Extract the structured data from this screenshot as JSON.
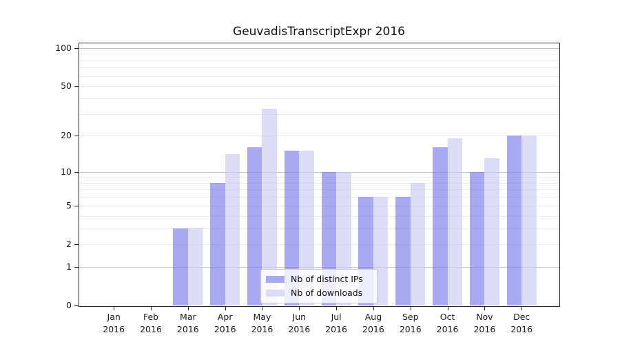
{
  "chart_data": {
    "type": "bar",
    "title": "GeuvadisTranscriptExpr 2016",
    "categories": [
      {
        "month": "Jan",
        "year": "2016"
      },
      {
        "month": "Feb",
        "year": "2016"
      },
      {
        "month": "Mar",
        "year": "2016"
      },
      {
        "month": "Apr",
        "year": "2016"
      },
      {
        "month": "May",
        "year": "2016"
      },
      {
        "month": "Jun",
        "year": "2016"
      },
      {
        "month": "Jul",
        "year": "2016"
      },
      {
        "month": "Aug",
        "year": "2016"
      },
      {
        "month": "Sep",
        "year": "2016"
      },
      {
        "month": "Oct",
        "year": "2016"
      },
      {
        "month": "Nov",
        "year": "2016"
      },
      {
        "month": "Dec",
        "year": "2016"
      }
    ],
    "series": [
      {
        "name": "Nb of distinct IPs",
        "values": [
          0,
          0,
          3,
          8,
          16,
          15,
          10,
          6,
          6,
          16,
          10,
          20
        ],
        "color": "#a9a9f1",
        "fill": "rgba(116,116,232,0.62)"
      },
      {
        "name": "Nb of downloads",
        "values": [
          0,
          0,
          3,
          14,
          33,
          15,
          10,
          6,
          8,
          19,
          13,
          20
        ],
        "color": "#dcdcf9",
        "fill": "rgba(198,198,245,0.62)"
      }
    ],
    "y_axis": {
      "scale": "log10(value+1)",
      "tick_values": [
        0,
        1,
        2,
        5,
        10,
        20,
        50,
        100
      ],
      "tick_labels": [
        "0",
        "1",
        "2",
        "5",
        "10",
        "20",
        "50",
        "100"
      ],
      "major_gridlines": [
        1,
        10,
        100
      ],
      "minor_gridlines": [
        2,
        3,
        4,
        5,
        6,
        7,
        8,
        9,
        20,
        30,
        40,
        50,
        60,
        70,
        80,
        90
      ],
      "range": [
        0,
        110
      ],
      "grid": "on"
    },
    "x_axis": {
      "label": "",
      "grid": "off"
    },
    "ylabel": "",
    "xlabel": "",
    "legend": {
      "position": "lower center"
    },
    "colors": {
      "major_grid": "#c3c3c3",
      "minor_grid": "#eaeaea",
      "spine": "#262626",
      "text": "#1a1a1a",
      "background": "#ffffff"
    }
  }
}
